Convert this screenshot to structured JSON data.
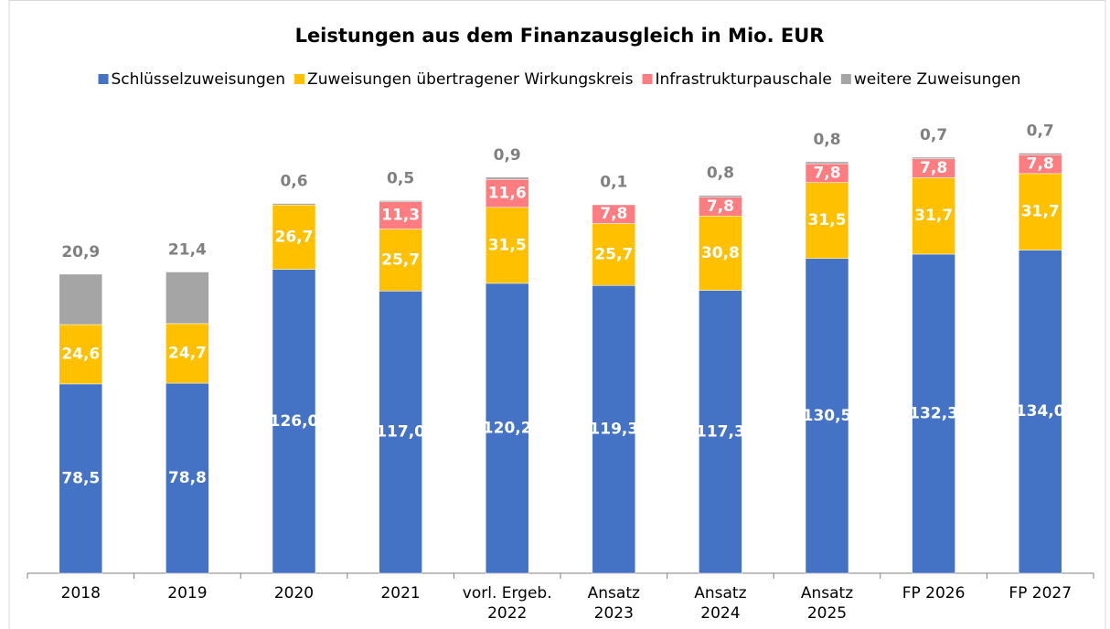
{
  "chart_data": {
    "type": "bar",
    "stacked": true,
    "title": "Leistungen aus dem Finanzausgleich in Mio. EUR",
    "categories": [
      "2018",
      "2019",
      "2020",
      "2021",
      "vorl. Ergeb.\n2022",
      "Ansatz\n2023",
      "Ansatz\n2024",
      "Ansatz\n2025",
      "FP 2026",
      "FP 2027"
    ],
    "ylim": [
      0,
      210
    ],
    "series": [
      {
        "name": "Schlüsselzuweisungen",
        "color": "#4472c4",
        "label_color": "#ffffff",
        "values": [
          78.5,
          78.8,
          126.0,
          117.0,
          120.2,
          119.3,
          117.3,
          130.5,
          132.3,
          134.0
        ],
        "value_labels": [
          "78,5",
          "78,8",
          "126,0",
          "117,0",
          "120,2",
          "119,3",
          "117,3",
          "130,5",
          "132,3",
          "134,0"
        ]
      },
      {
        "name": "Zuweisungen übertragener Wirkungskreis",
        "color": "#ffc000",
        "label_color": "#ffffff",
        "values": [
          24.6,
          24.7,
          26.7,
          25.7,
          31.5,
          25.7,
          30.8,
          31.5,
          31.7,
          31.7
        ],
        "value_labels": [
          "24,6",
          "24,7",
          "26,7",
          "25,7",
          "31,5",
          "25,7",
          "30,8",
          "31,5",
          "31,7",
          "31,7"
        ]
      },
      {
        "name": "Infrastrukturpauschale",
        "color": "#ff7c80",
        "label_color": "#ffffff",
        "values": [
          null,
          null,
          null,
          11.3,
          11.6,
          7.8,
          7.8,
          7.8,
          7.8,
          7.8
        ],
        "value_labels": [
          null,
          null,
          null,
          "11,3",
          "11,6",
          "7,8",
          "7,8",
          "7,8",
          "7,8",
          "7,8"
        ]
      },
      {
        "name": "weitere Zuweisungen",
        "color": "#a5a5a5",
        "label_color": "#808080",
        "values": [
          20.9,
          21.4,
          0.6,
          0.5,
          0.9,
          0.1,
          0.8,
          0.8,
          0.7,
          0.7
        ],
        "value_labels": [
          "20,9",
          "21,4",
          "0,6",
          "0,5",
          "0,9",
          "0,1",
          "0,8",
          "0,8",
          "0,7",
          "0,7"
        ]
      }
    ]
  }
}
